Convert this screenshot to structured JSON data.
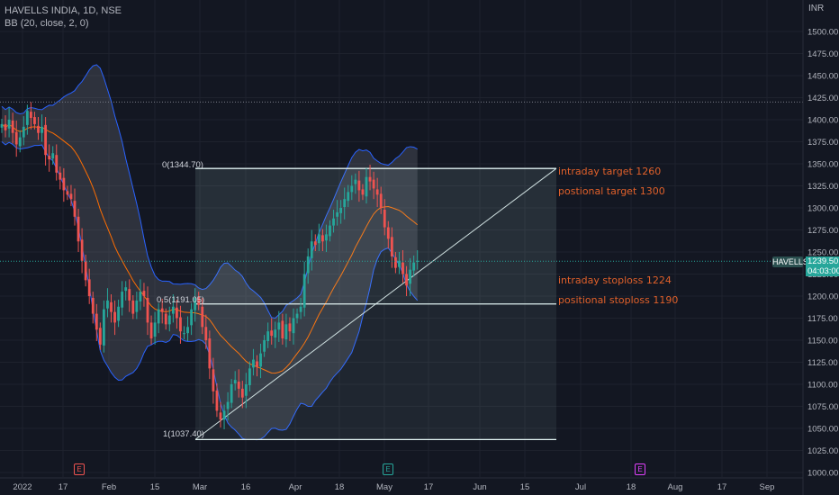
{
  "legend": {
    "line1": "HAVELLS INDIA, 1D, NSE",
    "line2": "BB (20, close, 2, 0)"
  },
  "currency": "INR",
  "badges": {
    "symbol": "HAVELLS",
    "last_price": "1239.50",
    "countdown": "04:03:00"
  },
  "fib": {
    "level0": "0(1344.70)",
    "level05": "0.5(1191.05)",
    "level1": "1(1037.40)"
  },
  "annotations": {
    "intraday_target": "intraday target 1260",
    "positional_target": "postional target 1300",
    "intraday_stoploss": "intraday stoploss 1224",
    "positional_stoploss": "positional stoploss 1190"
  },
  "y_axis": {
    "ticks": [
      "1000.00",
      "1025.00",
      "1050.00",
      "1075.00",
      "1100.00",
      "1125.00",
      "1150.00",
      "1175.00",
      "1200.00",
      "1225.00",
      "1250.00",
      "1275.00",
      "1300.00",
      "1325.00",
      "1350.00",
      "1375.00",
      "1400.00",
      "1425.00",
      "1450.00",
      "1475.00",
      "1500.00"
    ]
  },
  "x_axis": {
    "ticks": [
      "2022",
      "17",
      "Feb",
      "15",
      "Mar",
      "16",
      "Apr",
      "18",
      "May",
      "17",
      "Jun",
      "15",
      "Jul",
      "18",
      "Aug",
      "17",
      "Sep"
    ]
  },
  "events": [
    "E",
    "E",
    "E"
  ],
  "colors": {
    "background": "#131722",
    "up": "#26a69a",
    "down": "#ef5350",
    "band_fill": "#787b86",
    "band_line": "#2962ff",
    "basis": "#ff6d00",
    "annotation": "#e0602a",
    "fib_line": "#e0f2f1"
  },
  "chart_data": {
    "type": "candlestick",
    "symbol": "HAVELLS INDIA, 1D, NSE",
    "indicator": "BB (20, close, 2, 0)",
    "ylim": [
      1000,
      1515
    ],
    "fib_levels": [
      {
        "ratio": 0,
        "price": 1344.7
      },
      {
        "ratio": 0.5,
        "price": 1191.05
      },
      {
        "ratio": 1,
        "price": 1037.4
      }
    ],
    "closes": [
      1395,
      1388,
      1400,
      1385,
      1372,
      1380,
      1392,
      1410,
      1402,
      1395,
      1385,
      1392,
      1360,
      1355,
      1362,
      1340,
      1332,
      1320,
      1315,
      1310,
      1290,
      1262,
      1240,
      1218,
      1200,
      1180,
      1162,
      1145,
      1185,
      1195,
      1182,
      1170,
      1188,
      1205,
      1210,
      1195,
      1180,
      1195,
      1205,
      1200,
      1170,
      1152,
      1170,
      1185,
      1182,
      1168,
      1178,
      1188,
      1175,
      1160,
      1158,
      1165,
      1185,
      1198,
      1190,
      1165,
      1150,
      1118,
      1092,
      1070,
      1060,
      1070,
      1080,
      1100,
      1105,
      1095,
      1085,
      1100,
      1118,
      1128,
      1120,
      1135,
      1150,
      1160,
      1155,
      1162,
      1170,
      1152,
      1168,
      1160,
      1175,
      1180,
      1188,
      1225,
      1245,
      1262,
      1258,
      1270,
      1262,
      1270,
      1280,
      1288,
      1295,
      1300,
      1310,
      1318,
      1325,
      1332,
      1320,
      1315,
      1335,
      1330,
      1322,
      1315,
      1300,
      1278,
      1265,
      1245,
      1232,
      1240,
      1225,
      1212,
      1230,
      1238,
      1240
    ],
    "last_price": 1239.5
  }
}
